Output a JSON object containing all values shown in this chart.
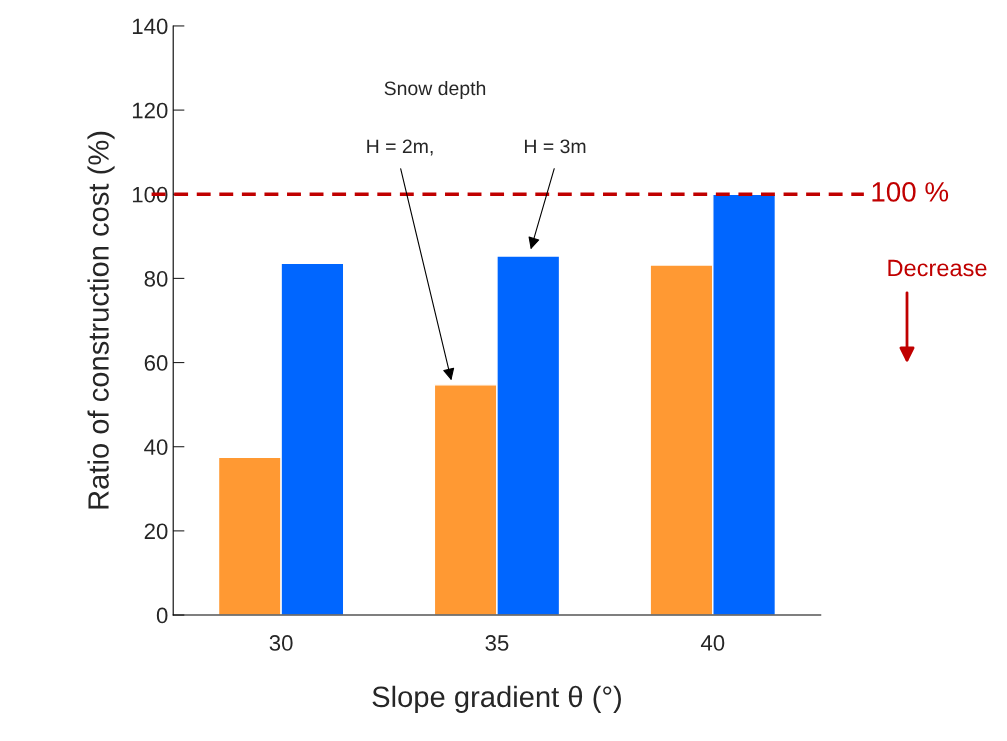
{
  "chart_data": {
    "type": "bar",
    "xlabel": "Slope gradient θ (°)",
    "ylabel": "Ratio of construction cost (%)",
    "categories": [
      "30",
      "35",
      "40"
    ],
    "series": [
      {
        "color": "#ff9933",
        "values": [
          37.5,
          54.7,
          83.2
        ]
      },
      {
        "color": "#0066ff",
        "values": [
          83.6,
          85.3,
          100
        ]
      }
    ],
    "ylim": [
      0,
      140
    ],
    "yticks": [
      0,
      20,
      40,
      60,
      80,
      100,
      120,
      140
    ],
    "grid": false,
    "legend": false,
    "ref_lines": [
      {
        "axis": "y",
        "value": 100,
        "label": "100 %",
        "color": "#c00000",
        "line_style": "dashed"
      }
    ],
    "annotations": [
      "Snow depth",
      "H = 2m,",
      "H = 3m",
      "Decrease"
    ]
  }
}
